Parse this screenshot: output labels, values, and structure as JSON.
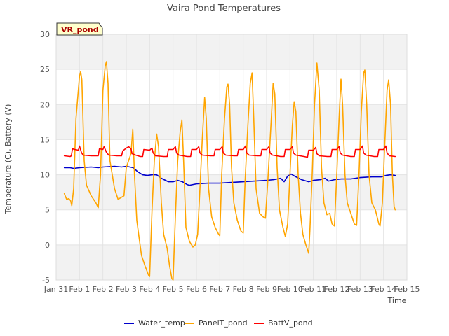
{
  "chart_data": {
    "type": "line",
    "title": "Vaira Pond Temperatures",
    "xlabel": "Time",
    "ylabel": "Temperature (C), Battery (V)",
    "site_tag": "VR_pond",
    "xlim": [
      0,
      15
    ],
    "ylim": [
      -5,
      30
    ],
    "x_ticks": [
      {
        "x": 0,
        "label": "Jan 31"
      },
      {
        "x": 1,
        "label": "Feb 1"
      },
      {
        "x": 2,
        "label": "Feb 2"
      },
      {
        "x": 3,
        "label": "Feb 3"
      },
      {
        "x": 4,
        "label": "Feb 4"
      },
      {
        "x": 5,
        "label": "Feb 5"
      },
      {
        "x": 6,
        "label": "Feb 6"
      },
      {
        "x": 7,
        "label": "Feb 7"
      },
      {
        "x": 8,
        "label": "Feb 8"
      },
      {
        "x": 9,
        "label": "Feb 9"
      },
      {
        "x": 10,
        "label": "Feb 10"
      },
      {
        "x": 11,
        "label": "Feb 11"
      },
      {
        "x": 12,
        "label": "Feb 12"
      },
      {
        "x": 13,
        "label": "Feb 13"
      },
      {
        "x": 14,
        "label": "Feb 14"
      },
      {
        "x": 15,
        "label": "Feb 15"
      }
    ],
    "y_ticks": [
      -5,
      0,
      5,
      10,
      15,
      20,
      25,
      30
    ],
    "grid": true,
    "legend_position": "bottom",
    "series": [
      {
        "name": "Water_temp",
        "color": "#0000cc",
        "points": [
          [
            0.35,
            11.0
          ],
          [
            0.6,
            11.0
          ],
          [
            0.75,
            10.9
          ],
          [
            1.0,
            11.0
          ],
          [
            1.5,
            11.1
          ],
          [
            1.8,
            11.0
          ],
          [
            2.0,
            11.1
          ],
          [
            2.5,
            11.2
          ],
          [
            2.8,
            11.1
          ],
          [
            3.0,
            11.2
          ],
          [
            3.3,
            11.0
          ],
          [
            3.5,
            10.4
          ],
          [
            3.7,
            10.0
          ],
          [
            3.9,
            9.9
          ],
          [
            4.1,
            10.0
          ],
          [
            4.3,
            10.0
          ],
          [
            4.5,
            9.5
          ],
          [
            4.8,
            9.0
          ],
          [
            5.0,
            9.0
          ],
          [
            5.2,
            9.2
          ],
          [
            5.4,
            9.0
          ],
          [
            5.6,
            8.6
          ],
          [
            5.7,
            8.5
          ],
          [
            6.0,
            8.7
          ],
          [
            6.5,
            8.8
          ],
          [
            7.0,
            8.8
          ],
          [
            7.5,
            8.9
          ],
          [
            8.0,
            9.0
          ],
          [
            8.5,
            9.1
          ],
          [
            9.0,
            9.2
          ],
          [
            9.3,
            9.3
          ],
          [
            9.6,
            9.5
          ],
          [
            9.75,
            9.0
          ],
          [
            9.9,
            9.8
          ],
          [
            10.05,
            10.1
          ],
          [
            10.2,
            9.8
          ],
          [
            10.5,
            9.3
          ],
          [
            10.8,
            9.0
          ],
          [
            11.0,
            9.2
          ],
          [
            11.3,
            9.3
          ],
          [
            11.5,
            9.5
          ],
          [
            11.65,
            9.1
          ],
          [
            11.9,
            9.3
          ],
          [
            12.2,
            9.4
          ],
          [
            12.6,
            9.4
          ],
          [
            13.0,
            9.6
          ],
          [
            13.5,
            9.7
          ],
          [
            13.9,
            9.7
          ],
          [
            14.1,
            9.9
          ],
          [
            14.3,
            10.0
          ],
          [
            14.5,
            9.9
          ]
        ]
      },
      {
        "name": "PanelT_pond",
        "color": "#ffa500",
        "points": [
          [
            0.35,
            7.3
          ],
          [
            0.45,
            6.5
          ],
          [
            0.55,
            6.6
          ],
          [
            0.62,
            6.3
          ],
          [
            0.67,
            5.6
          ],
          [
            0.75,
            8.0
          ],
          [
            0.85,
            18.0
          ],
          [
            1.0,
            24.0
          ],
          [
            1.05,
            24.7
          ],
          [
            1.1,
            23.5
          ],
          [
            1.2,
            12.0
          ],
          [
            1.3,
            8.5
          ],
          [
            1.5,
            7.0
          ],
          [
            1.7,
            6.0
          ],
          [
            1.8,
            5.3
          ],
          [
            1.9,
            10.0
          ],
          [
            2.0,
            22.0
          ],
          [
            2.1,
            25.5
          ],
          [
            2.15,
            26.1
          ],
          [
            2.22,
            23.0
          ],
          [
            2.3,
            12.0
          ],
          [
            2.5,
            8.0
          ],
          [
            2.65,
            6.5
          ],
          [
            2.8,
            6.8
          ],
          [
            2.9,
            7.0
          ],
          [
            3.0,
            11.0
          ],
          [
            3.1,
            12.0
          ],
          [
            3.2,
            13.0
          ],
          [
            3.28,
            16.5
          ],
          [
            3.35,
            10.0
          ],
          [
            3.45,
            3.5
          ],
          [
            3.55,
            1.0
          ],
          [
            3.65,
            -1.5
          ],
          [
            3.8,
            -3.0
          ],
          [
            3.95,
            -4.3
          ],
          [
            4.0,
            -4.5
          ],
          [
            4.1,
            5.0
          ],
          [
            4.2,
            12.0
          ],
          [
            4.3,
            15.8
          ],
          [
            4.38,
            14.0
          ],
          [
            4.5,
            6.0
          ],
          [
            4.6,
            1.5
          ],
          [
            4.75,
            -0.5
          ],
          [
            4.85,
            -3.0
          ],
          [
            4.95,
            -4.8
          ],
          [
            5.0,
            -5.0
          ],
          [
            5.1,
            4.0
          ],
          [
            5.2,
            12.0
          ],
          [
            5.3,
            16.0
          ],
          [
            5.38,
            17.8
          ],
          [
            5.45,
            12.0
          ],
          [
            5.55,
            2.5
          ],
          [
            5.7,
            0.5
          ],
          [
            5.85,
            -0.3
          ],
          [
            5.95,
            0.0
          ],
          [
            6.05,
            1.5
          ],
          [
            6.15,
            8.0
          ],
          [
            6.25,
            15.0
          ],
          [
            6.35,
            21.0
          ],
          [
            6.42,
            18.0
          ],
          [
            6.52,
            8.0
          ],
          [
            6.65,
            4.0
          ],
          [
            6.8,
            2.5
          ],
          [
            6.95,
            1.5
          ],
          [
            7.0,
            1.3
          ],
          [
            7.08,
            10.0
          ],
          [
            7.2,
            18.0
          ],
          [
            7.3,
            22.5
          ],
          [
            7.35,
            22.9
          ],
          [
            7.42,
            20.0
          ],
          [
            7.5,
            11.0
          ],
          [
            7.6,
            6.0
          ],
          [
            7.75,
            3.5
          ],
          [
            7.9,
            2.0
          ],
          [
            8.0,
            1.7
          ],
          [
            8.08,
            9.0
          ],
          [
            8.2,
            17.0
          ],
          [
            8.3,
            23.0
          ],
          [
            8.38,
            24.5
          ],
          [
            8.45,
            18.0
          ],
          [
            8.55,
            8.0
          ],
          [
            8.7,
            4.5
          ],
          [
            8.85,
            4.0
          ],
          [
            8.95,
            3.8
          ],
          [
            9.05,
            9.0
          ],
          [
            9.2,
            18.0
          ],
          [
            9.28,
            23.0
          ],
          [
            9.35,
            21.5
          ],
          [
            9.45,
            11.0
          ],
          [
            9.55,
            5.0
          ],
          [
            9.7,
            2.5
          ],
          [
            9.8,
            1.2
          ],
          [
            9.9,
            3.0
          ],
          [
            10.0,
            10.0
          ],
          [
            10.1,
            17.0
          ],
          [
            10.18,
            20.4
          ],
          [
            10.25,
            19.0
          ],
          [
            10.35,
            10.0
          ],
          [
            10.45,
            4.5
          ],
          [
            10.55,
            1.5
          ],
          [
            10.68,
            0.0
          ],
          [
            10.8,
            -1.2
          ],
          [
            10.85,
            2.0
          ],
          [
            10.95,
            10.0
          ],
          [
            11.05,
            20.0
          ],
          [
            11.15,
            25.9
          ],
          [
            11.25,
            22.0
          ],
          [
            11.35,
            11.0
          ],
          [
            11.45,
            6.0
          ],
          [
            11.58,
            4.3
          ],
          [
            11.7,
            4.5
          ],
          [
            11.8,
            3.0
          ],
          [
            11.9,
            2.7
          ],
          [
            12.0,
            10.0
          ],
          [
            12.1,
            18.0
          ],
          [
            12.18,
            23.6
          ],
          [
            12.25,
            20.0
          ],
          [
            12.35,
            10.0
          ],
          [
            12.45,
            6.0
          ],
          [
            12.6,
            4.5
          ],
          [
            12.75,
            3.0
          ],
          [
            12.85,
            2.8
          ],
          [
            12.95,
            10.0
          ],
          [
            13.05,
            19.0
          ],
          [
            13.15,
            24.5
          ],
          [
            13.2,
            24.9
          ],
          [
            13.28,
            20.0
          ],
          [
            13.38,
            10.0
          ],
          [
            13.5,
            6.0
          ],
          [
            13.65,
            5.0
          ],
          [
            13.8,
            3.0
          ],
          [
            13.85,
            2.7
          ],
          [
            13.95,
            6.0
          ],
          [
            14.05,
            14.0
          ],
          [
            14.15,
            22.0
          ],
          [
            14.22,
            23.5
          ],
          [
            14.3,
            20.0
          ],
          [
            14.38,
            10.0
          ],
          [
            14.45,
            5.5
          ],
          [
            14.5,
            5.0
          ]
        ]
      },
      {
        "name": "BattV_pond",
        "color": "#ff0000",
        "points": [
          [
            0.35,
            12.7
          ],
          [
            0.6,
            12.6
          ],
          [
            0.65,
            12.7
          ],
          [
            0.7,
            13.7
          ],
          [
            0.8,
            13.6
          ],
          [
            0.95,
            13.5
          ],
          [
            1.0,
            14.1
          ],
          [
            1.08,
            13.2
          ],
          [
            1.15,
            12.8
          ],
          [
            1.5,
            12.7
          ],
          [
            1.8,
            12.7
          ],
          [
            1.85,
            13.7
          ],
          [
            2.0,
            13.6
          ],
          [
            2.05,
            14.0
          ],
          [
            2.15,
            13.2
          ],
          [
            2.25,
            12.8
          ],
          [
            2.6,
            12.7
          ],
          [
            2.8,
            12.7
          ],
          [
            2.85,
            13.4
          ],
          [
            3.0,
            13.8
          ],
          [
            3.1,
            14.0
          ],
          [
            3.2,
            13.7
          ],
          [
            3.25,
            13.0
          ],
          [
            3.4,
            12.8
          ],
          [
            3.6,
            12.6
          ],
          [
            3.7,
            12.6
          ],
          [
            3.75,
            13.6
          ],
          [
            4.0,
            13.5
          ],
          [
            4.1,
            13.8
          ],
          [
            4.15,
            13.1
          ],
          [
            4.25,
            12.7
          ],
          [
            4.6,
            12.6
          ],
          [
            4.75,
            12.6
          ],
          [
            4.8,
            13.6
          ],
          [
            5.0,
            13.6
          ],
          [
            5.1,
            14.0
          ],
          [
            5.15,
            13.1
          ],
          [
            5.25,
            12.8
          ],
          [
            5.6,
            12.6
          ],
          [
            5.75,
            12.6
          ],
          [
            5.8,
            13.6
          ],
          [
            6.0,
            13.6
          ],
          [
            6.1,
            14.0
          ],
          [
            6.15,
            13.1
          ],
          [
            6.25,
            12.8
          ],
          [
            6.6,
            12.7
          ],
          [
            6.75,
            12.7
          ],
          [
            6.8,
            13.6
          ],
          [
            7.0,
            13.6
          ],
          [
            7.1,
            14.0
          ],
          [
            7.15,
            13.1
          ],
          [
            7.25,
            12.8
          ],
          [
            7.6,
            12.7
          ],
          [
            7.75,
            12.7
          ],
          [
            7.8,
            13.6
          ],
          [
            8.0,
            13.6
          ],
          [
            8.1,
            14.1
          ],
          [
            8.15,
            13.1
          ],
          [
            8.25,
            12.8
          ],
          [
            8.6,
            12.7
          ],
          [
            8.75,
            12.7
          ],
          [
            8.8,
            13.6
          ],
          [
            9.0,
            13.6
          ],
          [
            9.1,
            14.0
          ],
          [
            9.15,
            13.1
          ],
          [
            9.25,
            12.8
          ],
          [
            9.6,
            12.6
          ],
          [
            9.75,
            12.6
          ],
          [
            9.8,
            13.6
          ],
          [
            10.0,
            13.6
          ],
          [
            10.1,
            14.0
          ],
          [
            10.15,
            13.1
          ],
          [
            10.25,
            12.8
          ],
          [
            10.6,
            12.6
          ],
          [
            10.75,
            12.5
          ],
          [
            10.8,
            13.5
          ],
          [
            11.0,
            13.5
          ],
          [
            11.1,
            13.9
          ],
          [
            11.15,
            13.0
          ],
          [
            11.25,
            12.7
          ],
          [
            11.6,
            12.6
          ],
          [
            11.75,
            12.6
          ],
          [
            11.8,
            13.6
          ],
          [
            12.0,
            13.6
          ],
          [
            12.1,
            14.0
          ],
          [
            12.15,
            13.1
          ],
          [
            12.25,
            12.8
          ],
          [
            12.6,
            12.6
          ],
          [
            12.75,
            12.6
          ],
          [
            12.8,
            13.6
          ],
          [
            13.0,
            13.6
          ],
          [
            13.1,
            14.1
          ],
          [
            13.15,
            13.1
          ],
          [
            13.25,
            12.8
          ],
          [
            13.6,
            12.6
          ],
          [
            13.75,
            12.6
          ],
          [
            13.8,
            13.6
          ],
          [
            14.0,
            13.6
          ],
          [
            14.1,
            14.1
          ],
          [
            14.15,
            13.1
          ],
          [
            14.25,
            12.7
          ],
          [
            14.5,
            12.6
          ]
        ]
      }
    ]
  }
}
